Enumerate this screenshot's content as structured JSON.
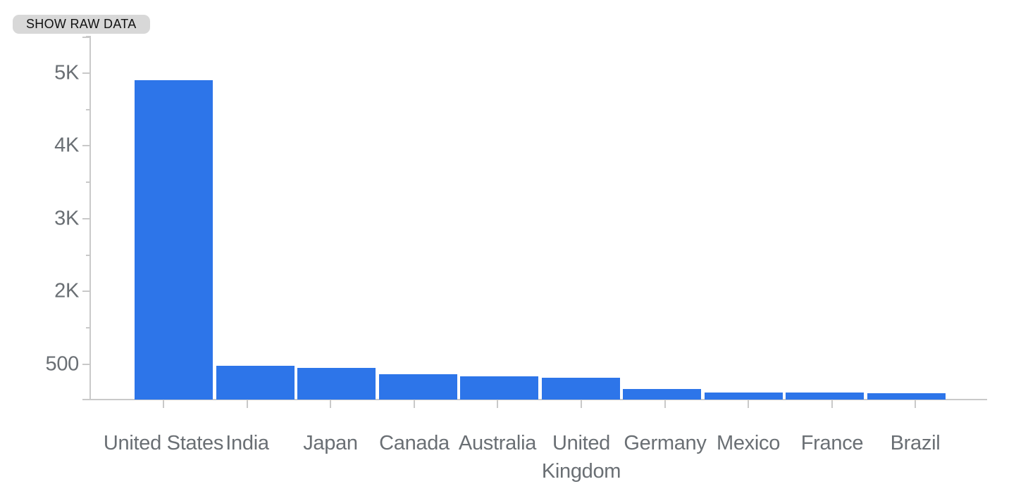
{
  "toolbar": {
    "show_raw_data_label": "SHOW RAW DATA"
  },
  "chart_data": {
    "type": "bar",
    "title": "",
    "xlabel": "",
    "ylabel": "",
    "categories": [
      "United States",
      "India",
      "Japan",
      "Canada",
      "Australia",
      "United Kingdom",
      "Germany",
      "Mexico",
      "France",
      "Brazil"
    ],
    "values": [
      4890,
      520,
      490,
      385,
      355,
      330,
      165,
      105,
      105,
      95
    ],
    "ylim": [
      0,
      5000
    ],
    "y_tick_labels": [
      "5K",
      "4K",
      "3K",
      "2K",
      "500"
    ],
    "grid": false,
    "legend": "none",
    "colors": {
      "bar": "#2d75e9",
      "axis": "#c9c9c9",
      "axis_label": "#6a6f74",
      "button_bg": "#d8d8d8",
      "button_text": "#111111",
      "background": "#ffffff"
    }
  }
}
